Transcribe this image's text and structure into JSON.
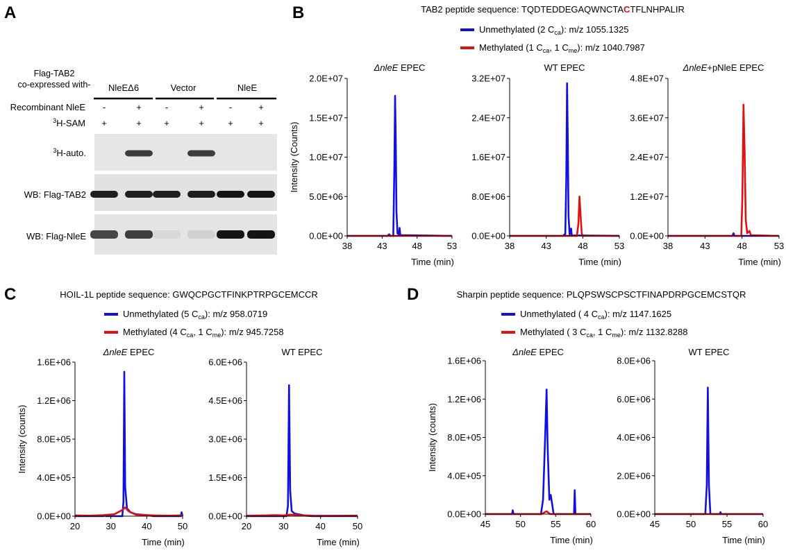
{
  "panel_labels": {
    "A": "A",
    "B": "B",
    "C": "C",
    "D": "D"
  },
  "panel_a": {
    "header_line1": "Flag-TAB2",
    "header_line2": "co-expressed with-",
    "groups": [
      "NleEΔ6",
      "Vector",
      "NleE"
    ],
    "rows": [
      {
        "label": "Recombinant NleE",
        "values": [
          "-",
          "+",
          "-",
          "+",
          "-",
          "+"
        ]
      },
      {
        "label_sup": "3",
        "label": "H-SAM",
        "values": [
          "+",
          "+",
          "+",
          "+",
          "+",
          "+"
        ]
      }
    ],
    "blots": [
      {
        "label_sup": "3",
        "label": "H-auto.",
        "band_intensity": [
          0.02,
          0.8,
          0.02,
          0.8,
          0.02,
          0.02
        ]
      },
      {
        "label": "WB: Flag-TAB2",
        "band_intensity": [
          0.95,
          0.95,
          0.95,
          0.95,
          1.0,
          1.0
        ]
      },
      {
        "label": "WB: Flag-NleE",
        "band_intensity": [
          0.75,
          0.8,
          0.05,
          0.08,
          1.0,
          1.0
        ]
      }
    ]
  },
  "panel_b": {
    "seq_prefix": "TAB2 peptide sequence: TQDTEDDEGAQWNCTA",
    "seq_highlight": "C",
    "seq_suffix": "TFLNHPALIR",
    "legend": [
      {
        "text_a": "Unmethylated (2 C",
        "sub_a": "ca",
        "text_b": "): m/z 1055.1325",
        "color": "#1010e0"
      },
      {
        "text_a": "Methylated (1 C",
        "sub_a": "ca",
        "text_b": ", 1 C",
        "sub_b": "me",
        "text_c": "): m/z 1040.7987",
        "color": "#e01010"
      }
    ]
  },
  "panel_c": {
    "seq": "HOIL-1L peptide sequence: GWQCPGCTFINKPTRPGCEMCCR",
    "legend": [
      {
        "text_a": "Unmethylated (5 C",
        "sub_a": "ca",
        "text_b": "): m/z 958.0719",
        "color": "#1010e0"
      },
      {
        "text_a": "Methylated (4 C",
        "sub_a": "ca",
        "text_b": ", 1 C",
        "sub_b": "me",
        "text_c": "): m/z 945.7258",
        "color": "#e01010"
      }
    ]
  },
  "panel_d": {
    "seq": "Sharpin peptide sequence: PLQPSWSCPSCTFINAPDRPGCEMCSTQR",
    "legend": [
      {
        "text_a": "Unmethylated ( 4 C",
        "sub_a": "ca",
        "text_b": "): m/z 1147.1625",
        "color": "#1010e0"
      },
      {
        "text_a": "Methylated ( 3 C",
        "sub_a": "ca",
        "text_b": ", 1 C",
        "sub_b": "me",
        "text_c": "): m/z 1132.8288",
        "color": "#e01010"
      }
    ]
  },
  "colors": {
    "unmethylated": "#1010e0",
    "methylated": "#e01010"
  },
  "chart_data": [
    {
      "id": "b1",
      "type": "line",
      "title_italic": "ΔnleE",
      "title_rest": " EPEC",
      "ylabel": "Intensity (Counts)",
      "xlabel": "Time (min)",
      "xlim": [
        38,
        53
      ],
      "ylim": [
        0,
        20000000
      ],
      "xticks": [
        38,
        43,
        48,
        53
      ],
      "yticks": [
        0,
        5000000,
        10000000,
        15000000,
        20000000
      ],
      "ytick_labels": [
        "0.0E+00",
        "5.0E+06",
        "1.0E+07",
        "1.5E+07",
        "2.0E+07"
      ],
      "series": [
        {
          "color": "#1010e0",
          "points": [
            [
              38,
              0
            ],
            [
              43.8,
              0
            ],
            [
              44.0,
              200000
            ],
            [
              44.2,
              0
            ],
            [
              44.6,
              0
            ],
            [
              44.75,
              9000000
            ],
            [
              44.85,
              17800000
            ],
            [
              44.95,
              12000000
            ],
            [
              45.05,
              3000000
            ],
            [
              45.2,
              300000
            ],
            [
              45.4,
              200000
            ],
            [
              45.5,
              1000000
            ],
            [
              45.6,
              100000
            ],
            [
              53,
              0
            ]
          ]
        },
        {
          "color": "#e01010",
          "points": [
            [
              38,
              0
            ],
            [
              53,
              0
            ]
          ]
        }
      ]
    },
    {
      "id": "b2",
      "type": "line",
      "title_italic": "",
      "title_rest": "WT EPEC",
      "ylabel": "",
      "xlabel": "Time (min)",
      "xlim": [
        38,
        53
      ],
      "ylim": [
        0,
        32000000
      ],
      "xticks": [
        38,
        43,
        48,
        53
      ],
      "yticks": [
        0,
        8000000,
        16000000,
        24000000,
        32000000
      ],
      "ytick_labels": [
        "0.0E+00",
        "8.0E+06",
        "1.6E+07",
        "2.4E+07",
        "3.2E+07"
      ],
      "series": [
        {
          "color": "#1010e0",
          "points": [
            [
              38,
              0
            ],
            [
              45.3,
              0
            ],
            [
              45.5,
              300000
            ],
            [
              45.6,
              0
            ],
            [
              45.75,
              12000000
            ],
            [
              45.85,
              31000000
            ],
            [
              45.95,
              20000000
            ],
            [
              46.05,
              4000000
            ],
            [
              46.2,
              200000
            ],
            [
              46.4,
              1500000
            ],
            [
              46.5,
              100000
            ],
            [
              53,
              0
            ]
          ]
        },
        {
          "color": "#e01010",
          "points": [
            [
              38,
              0
            ],
            [
              47.2,
              0
            ],
            [
              47.4,
              2500000
            ],
            [
              47.55,
              8000000
            ],
            [
              47.7,
              4000000
            ],
            [
              47.85,
              500000
            ],
            [
              48.0,
              0
            ],
            [
              53,
              0
            ]
          ]
        }
      ]
    },
    {
      "id": "b3",
      "type": "line",
      "title_italic": "ΔnleE",
      "title_rest": "+pNleE EPEC",
      "ylabel": "",
      "xlabel": "Time (min)",
      "xlim": [
        38,
        53
      ],
      "ylim": [
        0,
        48000000
      ],
      "xticks": [
        38,
        43,
        48,
        53
      ],
      "yticks": [
        0,
        12000000,
        24000000,
        36000000,
        48000000
      ],
      "ytick_labels": [
        "0.0E+00",
        "1.2E+07",
        "2.4E+07",
        "3.6E+07",
        "4.8E+07"
      ],
      "series": [
        {
          "color": "#1010e0",
          "points": [
            [
              38,
              0
            ],
            [
              46.7,
              0
            ],
            [
              46.85,
              800000
            ],
            [
              47.0,
              0
            ],
            [
              53,
              0
            ]
          ]
        },
        {
          "color": "#e01010",
          "points": [
            [
              38,
              0
            ],
            [
              47.9,
              0
            ],
            [
              48.05,
              12000000
            ],
            [
              48.2,
              40000000
            ],
            [
              48.35,
              26000000
            ],
            [
              48.5,
              5000000
            ],
            [
              48.7,
              800000
            ],
            [
              49.0,
              1500000
            ],
            [
              49.2,
              200000
            ],
            [
              53,
              0
            ]
          ]
        }
      ]
    },
    {
      "id": "c1",
      "type": "line",
      "title_italic": "ΔnleE",
      "title_rest": " EPEC",
      "ylabel": "Intensity (counts)",
      "xlabel": "Time (min)",
      "xlim": [
        20,
        50
      ],
      "ylim": [
        0,
        1600000
      ],
      "xticks": [
        20,
        30,
        40,
        50
      ],
      "yticks": [
        0,
        400000,
        800000,
        1200000,
        1600000
      ],
      "ytick_labels": [
        "0.0E+00",
        "4.0E+05",
        "8.0E+05",
        "1.2E+06",
        "1.6E+06"
      ],
      "series": [
        {
          "color": "#1010e0",
          "points": [
            [
              20,
              0
            ],
            [
              28,
              0
            ],
            [
              28.3,
              10000
            ],
            [
              28.6,
              0
            ],
            [
              33.2,
              0
            ],
            [
              33.5,
              150000
            ],
            [
              33.75,
              1500000
            ],
            [
              34.0,
              300000
            ],
            [
              34.5,
              80000
            ],
            [
              35.5,
              40000
            ],
            [
              37,
              20000
            ],
            [
              40,
              10000
            ],
            [
              42,
              0
            ],
            [
              49.5,
              0
            ],
            [
              49.7,
              40000
            ],
            [
              50,
              0
            ]
          ]
        },
        {
          "color": "#e01010",
          "points": [
            [
              20,
              8000
            ],
            [
              24,
              5000
            ],
            [
              28,
              10000
            ],
            [
              31,
              20000
            ],
            [
              33,
              60000
            ],
            [
              34,
              90000
            ],
            [
              35,
              50000
            ],
            [
              37,
              15000
            ],
            [
              42,
              8000
            ],
            [
              46,
              5000
            ],
            [
              50,
              8000
            ]
          ]
        }
      ]
    },
    {
      "id": "c2",
      "type": "line",
      "title_italic": "",
      "title_rest": "WT EPEC",
      "ylabel": "",
      "xlabel": "Time (min)",
      "xlim": [
        20,
        50
      ],
      "ylim": [
        0,
        6000000
      ],
      "xticks": [
        20,
        30,
        40,
        50
      ],
      "yticks": [
        0,
        1500000,
        3000000,
        4500000,
        6000000
      ],
      "ytick_labels": [
        "0.0E+00",
        "1.5E+06",
        "3.0E+06",
        "4.5E+06",
        "6.0E+06"
      ],
      "series": [
        {
          "color": "#1010e0",
          "points": [
            [
              20,
              0
            ],
            [
              30.8,
              0
            ],
            [
              31.2,
              400000
            ],
            [
              31.5,
              5100000
            ],
            [
              31.8,
              1000000
            ],
            [
              32.2,
              200000
            ],
            [
              33,
              100000
            ],
            [
              34.5,
              60000
            ],
            [
              36,
              20000
            ],
            [
              38,
              0
            ],
            [
              50,
              0
            ]
          ]
        },
        {
          "color": "#e01010",
          "points": [
            [
              20,
              20000
            ],
            [
              25,
              30000
            ],
            [
              28,
              40000
            ],
            [
              30,
              30000
            ],
            [
              32,
              60000
            ],
            [
              34,
              40000
            ],
            [
              38,
              20000
            ],
            [
              44,
              15000
            ],
            [
              50,
              20000
            ]
          ]
        }
      ]
    },
    {
      "id": "d1",
      "type": "line",
      "title_italic": "ΔnleE",
      "title_rest": " EPEC",
      "ylabel": "Intensity (counts)",
      "xlabel": "Time (min)",
      "xlim": [
        45,
        60
      ],
      "ylim": [
        0,
        1600000
      ],
      "xticks": [
        45,
        50,
        55,
        60
      ],
      "yticks": [
        0,
        400000,
        800000,
        1200000,
        1600000
      ],
      "ytick_labels": [
        "0.0E+00",
        "4.0E+05",
        "8.0E+05",
        "1.2E+06",
        "1.6E+06"
      ],
      "series": [
        {
          "color": "#1010e0",
          "points": [
            [
              45,
              0
            ],
            [
              48.8,
              0
            ],
            [
              48.9,
              40000
            ],
            [
              49.0,
              0
            ],
            [
              52.9,
              0
            ],
            [
              53.2,
              150000
            ],
            [
              53.5,
              800000
            ],
            [
              53.7,
              1300000
            ],
            [
              53.85,
              700000
            ],
            [
              54.1,
              150000
            ],
            [
              54.3,
              200000
            ],
            [
              54.5,
              100000
            ],
            [
              54.7,
              0
            ],
            [
              57.6,
              0
            ],
            [
              57.7,
              250000
            ],
            [
              57.8,
              0
            ],
            [
              60,
              0
            ]
          ]
        },
        {
          "color": "#e01010",
          "points": [
            [
              45,
              0
            ],
            [
              53,
              0
            ],
            [
              53.7,
              30000
            ],
            [
              54.2,
              0
            ],
            [
              60,
              0
            ]
          ]
        }
      ]
    },
    {
      "id": "d2",
      "type": "line",
      "title_italic": "",
      "title_rest": "WT EPEC",
      "ylabel": "",
      "xlabel": "Time (min)",
      "xlim": [
        45,
        60
      ],
      "ylim": [
        0,
        8000000
      ],
      "xticks": [
        45,
        50,
        55,
        60
      ],
      "yticks": [
        0,
        2000000,
        4000000,
        6000000,
        8000000
      ],
      "ytick_labels": [
        "0.0E+00",
        "2.0E+06",
        "4.0E+06",
        "6.0E+06",
        "8.0E+06"
      ],
      "series": [
        {
          "color": "#1010e0",
          "points": [
            [
              45,
              0
            ],
            [
              52.0,
              0
            ],
            [
              52.2,
              1500000
            ],
            [
              52.35,
              6600000
            ],
            [
              52.5,
              1500000
            ],
            [
              52.7,
              0
            ],
            [
              54.0,
              0
            ],
            [
              54.1,
              100000
            ],
            [
              54.2,
              0
            ],
            [
              60,
              0
            ]
          ]
        },
        {
          "color": "#e01010",
          "points": [
            [
              45,
              0
            ],
            [
              60,
              0
            ]
          ]
        }
      ]
    }
  ]
}
